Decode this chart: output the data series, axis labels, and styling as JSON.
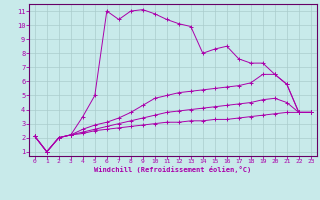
{
  "xlabel": "Windchill (Refroidissement éolien,°C)",
  "bg_color": "#c8eaea",
  "grid_color": "#aacccc",
  "line_color": "#aa00aa",
  "axis_line_color": "#660066",
  "xlim": [
    -0.5,
    23.5
  ],
  "ylim": [
    0.7,
    11.5
  ],
  "xticks": [
    0,
    1,
    2,
    3,
    4,
    5,
    6,
    7,
    8,
    9,
    10,
    11,
    12,
    13,
    14,
    15,
    16,
    17,
    18,
    19,
    20,
    21,
    22,
    23
  ],
  "yticks": [
    1,
    2,
    3,
    4,
    5,
    6,
    7,
    8,
    9,
    10,
    11
  ],
  "series": [
    [
      2.1,
      1.0,
      2.0,
      2.2,
      3.5,
      5.0,
      11.0,
      10.4,
      11.0,
      11.1,
      10.8,
      10.4,
      10.1,
      9.9,
      8.0,
      8.3,
      8.5,
      7.6,
      7.3,
      7.3,
      6.5,
      5.8,
      3.8,
      3.8
    ],
    [
      2.1,
      1.0,
      2.0,
      2.2,
      2.6,
      2.9,
      3.1,
      3.4,
      3.8,
      4.3,
      4.8,
      5.0,
      5.2,
      5.3,
      5.4,
      5.5,
      5.6,
      5.7,
      5.9,
      6.5,
      6.5,
      5.8,
      3.8,
      3.8
    ],
    [
      2.1,
      1.0,
      2.0,
      2.2,
      2.4,
      2.6,
      2.8,
      3.0,
      3.2,
      3.4,
      3.6,
      3.8,
      3.9,
      4.0,
      4.1,
      4.2,
      4.3,
      4.4,
      4.5,
      4.7,
      4.8,
      4.5,
      3.8,
      3.8
    ],
    [
      2.1,
      1.0,
      2.0,
      2.2,
      2.3,
      2.5,
      2.6,
      2.7,
      2.8,
      2.9,
      3.0,
      3.1,
      3.1,
      3.2,
      3.2,
      3.3,
      3.3,
      3.4,
      3.5,
      3.6,
      3.7,
      3.8,
      3.8,
      3.8
    ]
  ]
}
